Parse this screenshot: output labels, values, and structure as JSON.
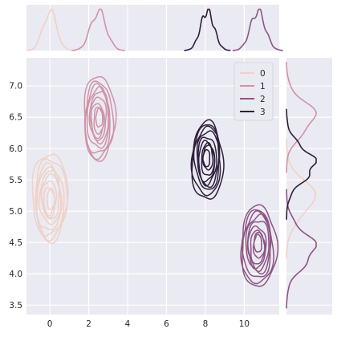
{
  "chart_data": {
    "type": "jointplot-kde",
    "xlim": [
      -1.2,
      11.8
    ],
    "ylim": [
      3.35,
      7.45
    ],
    "x_ticks": [
      0,
      2,
      4,
      6,
      8,
      10
    ],
    "y_ticks": [
      3.5,
      4.0,
      4.5,
      5.0,
      5.5,
      6.0,
      6.5,
      7.0
    ],
    "x_tick_labels": [
      "0",
      "2",
      "4",
      "6",
      "8",
      "10"
    ],
    "y_tick_labels": [
      "3.5",
      "4.0",
      "4.5",
      "5.0",
      "5.5",
      "6.0",
      "6.5",
      "7.0"
    ],
    "grid": true,
    "legend_position": "top-right",
    "series": [
      {
        "name": "0",
        "color": "#efd1c6",
        "x_center": 0.0,
        "y_center": 5.2,
        "x_sd": 0.35,
        "y_sd": 0.28,
        "x_range": [
          -0.9,
          0.9
        ],
        "y_range": [
          4.5,
          5.9
        ]
      },
      {
        "name": "1",
        "color": "#cf93a8",
        "x_center": 2.5,
        "y_center": 6.5,
        "x_sd": 0.4,
        "y_sd": 0.26,
        "x_range": [
          1.7,
          3.3
        ],
        "y_range": [
          5.8,
          7.15
        ]
      },
      {
        "name": "2",
        "color": "#8d5484",
        "x_center": 10.7,
        "y_center": 4.4,
        "x_sd": 0.38,
        "y_sd": 0.28,
        "x_range": [
          9.8,
          11.6
        ],
        "y_range": [
          3.8,
          5.1
        ]
      },
      {
        "name": "3",
        "color": "#2e1e3b",
        "x_center": 8.1,
        "y_center": 5.75,
        "x_sd": 0.35,
        "y_sd": 0.26,
        "x_range": [
          7.3,
          8.9
        ],
        "y_range": [
          5.2,
          6.45
        ]
      }
    ]
  }
}
